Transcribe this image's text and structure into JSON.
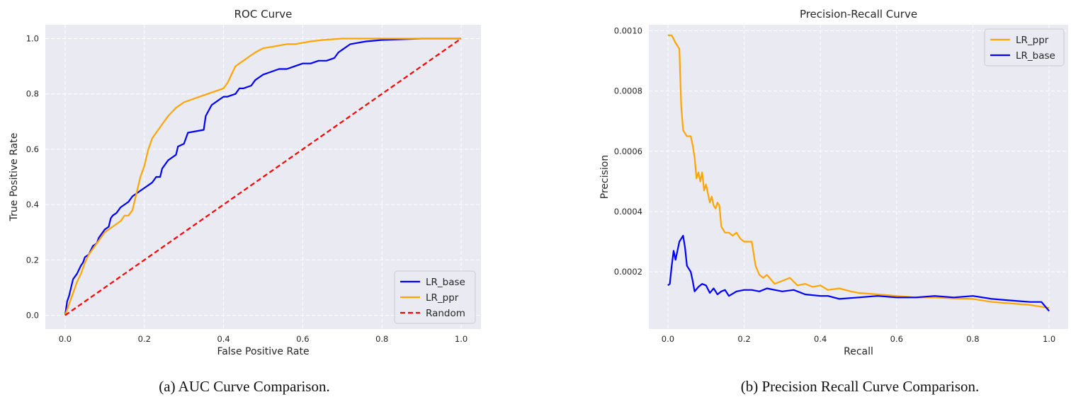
{
  "chart_data": [
    {
      "type": "line",
      "title": "ROC Curve",
      "xlabel": "False Positive Rate",
      "ylabel": "True Positive Rate",
      "xlim": [
        -0.05,
        1.05
      ],
      "ylim": [
        -0.05,
        1.05
      ],
      "xticks": [
        0.0,
        0.2,
        0.4,
        0.6,
        0.8,
        1.0
      ],
      "yticks": [
        0.0,
        0.2,
        0.4,
        0.6,
        0.8,
        1.0
      ],
      "xtick_labels": [
        "0.0",
        "0.2",
        "0.4",
        "0.6",
        "0.8",
        "1.0"
      ],
      "ytick_labels": [
        "0.0",
        "0.2",
        "0.4",
        "0.6",
        "0.8",
        "1.0"
      ],
      "grid": true,
      "legend_position": "lower-right",
      "caption": "(a) AUC Curve Comparison.",
      "series": [
        {
          "name": "LR_base",
          "color": "#0000ff",
          "dash": "solid",
          "x": [
            0.0,
            0.005,
            0.01,
            0.015,
            0.02,
            0.025,
            0.03,
            0.04,
            0.045,
            0.05,
            0.06,
            0.07,
            0.08,
            0.085,
            0.1,
            0.11,
            0.115,
            0.12,
            0.13,
            0.14,
            0.15,
            0.16,
            0.17,
            0.18,
            0.19,
            0.2,
            0.22,
            0.23,
            0.24,
            0.245,
            0.26,
            0.28,
            0.285,
            0.3,
            0.31,
            0.35,
            0.355,
            0.37,
            0.39,
            0.4,
            0.41,
            0.43,
            0.44,
            0.45,
            0.47,
            0.48,
            0.5,
            0.52,
            0.54,
            0.56,
            0.58,
            0.6,
            0.62,
            0.64,
            0.66,
            0.68,
            0.69,
            0.7,
            0.72,
            0.74,
            0.76,
            0.8,
            0.9,
            1.0
          ],
          "y": [
            0.0,
            0.05,
            0.07,
            0.1,
            0.13,
            0.14,
            0.15,
            0.18,
            0.19,
            0.21,
            0.22,
            0.25,
            0.26,
            0.28,
            0.31,
            0.32,
            0.35,
            0.36,
            0.37,
            0.39,
            0.4,
            0.41,
            0.43,
            0.44,
            0.45,
            0.46,
            0.48,
            0.5,
            0.5,
            0.53,
            0.56,
            0.58,
            0.61,
            0.62,
            0.66,
            0.67,
            0.72,
            0.76,
            0.78,
            0.79,
            0.79,
            0.8,
            0.82,
            0.82,
            0.83,
            0.85,
            0.87,
            0.88,
            0.89,
            0.89,
            0.9,
            0.91,
            0.91,
            0.92,
            0.92,
            0.93,
            0.95,
            0.96,
            0.98,
            0.985,
            0.99,
            0.995,
            1.0,
            1.0
          ]
        },
        {
          "name": "LR_ppr",
          "color": "#ffa500",
          "dash": "solid",
          "x": [
            0.0,
            0.01,
            0.02,
            0.03,
            0.04,
            0.05,
            0.06,
            0.08,
            0.1,
            0.12,
            0.14,
            0.15,
            0.16,
            0.17,
            0.18,
            0.19,
            0.2,
            0.21,
            0.22,
            0.24,
            0.26,
            0.28,
            0.3,
            0.32,
            0.34,
            0.36,
            0.38,
            0.4,
            0.41,
            0.42,
            0.43,
            0.44,
            0.46,
            0.48,
            0.5,
            0.52,
            0.54,
            0.56,
            0.58,
            0.6,
            0.62,
            0.65,
            0.7,
            0.75,
            0.8,
            0.9,
            1.0
          ],
          "y": [
            0.0,
            0.04,
            0.08,
            0.12,
            0.15,
            0.19,
            0.22,
            0.26,
            0.3,
            0.32,
            0.34,
            0.36,
            0.36,
            0.38,
            0.44,
            0.5,
            0.54,
            0.6,
            0.64,
            0.68,
            0.72,
            0.75,
            0.77,
            0.78,
            0.79,
            0.8,
            0.81,
            0.82,
            0.84,
            0.87,
            0.9,
            0.91,
            0.93,
            0.95,
            0.965,
            0.97,
            0.975,
            0.98,
            0.98,
            0.985,
            0.99,
            0.995,
            1.0,
            1.0,
            1.0,
            1.0,
            1.0
          ]
        },
        {
          "name": "Random",
          "color": "#ff0000",
          "dash": "dashed",
          "x": [
            0.0,
            1.0
          ],
          "y": [
            0.0,
            1.0
          ]
        }
      ]
    },
    {
      "type": "line",
      "title": "Precision-Recall Curve",
      "xlabel": "Recall",
      "ylabel": "Precision",
      "xlim": [
        -0.05,
        1.05
      ],
      "ylim": [
        1e-05,
        0.00102
      ],
      "xticks": [
        0.0,
        0.2,
        0.4,
        0.6,
        0.8,
        1.0
      ],
      "yticks": [
        0.0002,
        0.0004,
        0.0006,
        0.0008,
        0.001
      ],
      "xtick_labels": [
        "0.0",
        "0.2",
        "0.4",
        "0.6",
        "0.8",
        "1.0"
      ],
      "ytick_labels": [
        "0.0002",
        "0.0004",
        "0.0006",
        "0.0008",
        "0.0010"
      ],
      "grid": true,
      "legend_position": "top-right",
      "caption": "(b) Precision Recall Curve Comparison.",
      "series": [
        {
          "name": "LR_ppr",
          "color": "#ffa500",
          "dash": "solid",
          "x": [
            0.0,
            0.01,
            0.02,
            0.03,
            0.035,
            0.04,
            0.045,
            0.05,
            0.06,
            0.065,
            0.07,
            0.075,
            0.08,
            0.085,
            0.09,
            0.095,
            0.1,
            0.105,
            0.11,
            0.115,
            0.12,
            0.125,
            0.13,
            0.135,
            0.14,
            0.15,
            0.16,
            0.17,
            0.18,
            0.19,
            0.2,
            0.21,
            0.22,
            0.23,
            0.24,
            0.25,
            0.26,
            0.28,
            0.3,
            0.32,
            0.34,
            0.36,
            0.38,
            0.4,
            0.42,
            0.45,
            0.48,
            0.5,
            0.55,
            0.6,
            0.65,
            0.7,
            0.75,
            0.8,
            0.85,
            0.9,
            0.95,
            1.0
          ],
          "y": [
            0.000985,
            0.000985,
            0.00096,
            0.00094,
            0.00075,
            0.00067,
            0.00066,
            0.00065,
            0.00065,
            0.00062,
            0.00058,
            0.00051,
            0.00053,
            0.0005,
            0.00053,
            0.00047,
            0.00049,
            0.00046,
            0.00043,
            0.00045,
            0.00042,
            0.00041,
            0.00043,
            0.00042,
            0.00035,
            0.00033,
            0.00033,
            0.00032,
            0.00033,
            0.00031,
            0.0003,
            0.0003,
            0.0003,
            0.00022,
            0.00019,
            0.00018,
            0.00019,
            0.00016,
            0.00017,
            0.00018,
            0.000155,
            0.00016,
            0.00015,
            0.000155,
            0.00014,
            0.000145,
            0.000135,
            0.00013,
            0.000125,
            0.00012,
            0.000115,
            0.000115,
            0.000112,
            0.00011,
            0.0001,
            9.5e-05,
            9e-05,
            8e-05
          ]
        },
        {
          "name": "LR_base",
          "color": "#0000ff",
          "dash": "solid",
          "x": [
            0.0,
            0.005,
            0.01,
            0.015,
            0.02,
            0.025,
            0.03,
            0.035,
            0.04,
            0.045,
            0.05,
            0.055,
            0.06,
            0.065,
            0.07,
            0.08,
            0.09,
            0.1,
            0.11,
            0.12,
            0.13,
            0.14,
            0.15,
            0.16,
            0.18,
            0.2,
            0.22,
            0.24,
            0.26,
            0.28,
            0.3,
            0.33,
            0.36,
            0.4,
            0.42,
            0.45,
            0.5,
            0.55,
            0.6,
            0.65,
            0.7,
            0.75,
            0.8,
            0.85,
            0.9,
            0.95,
            0.98,
            1.0
          ],
          "y": [
            0.000155,
            0.00016,
            0.00022,
            0.00027,
            0.00024,
            0.00027,
            0.0003,
            0.00031,
            0.00032,
            0.00028,
            0.00022,
            0.00021,
            0.0002,
            0.00017,
            0.000135,
            0.00015,
            0.00016,
            0.000155,
            0.00013,
            0.000145,
            0.000125,
            0.000135,
            0.00014,
            0.00012,
            0.000135,
            0.00014,
            0.00014,
            0.000135,
            0.000145,
            0.00014,
            0.000135,
            0.00014,
            0.000125,
            0.00012,
            0.00012,
            0.00011,
            0.000115,
            0.00012,
            0.000115,
            0.000115,
            0.00012,
            0.000115,
            0.00012,
            0.00011,
            0.000105,
            0.0001,
            0.0001,
            7e-05
          ]
        }
      ]
    }
  ]
}
